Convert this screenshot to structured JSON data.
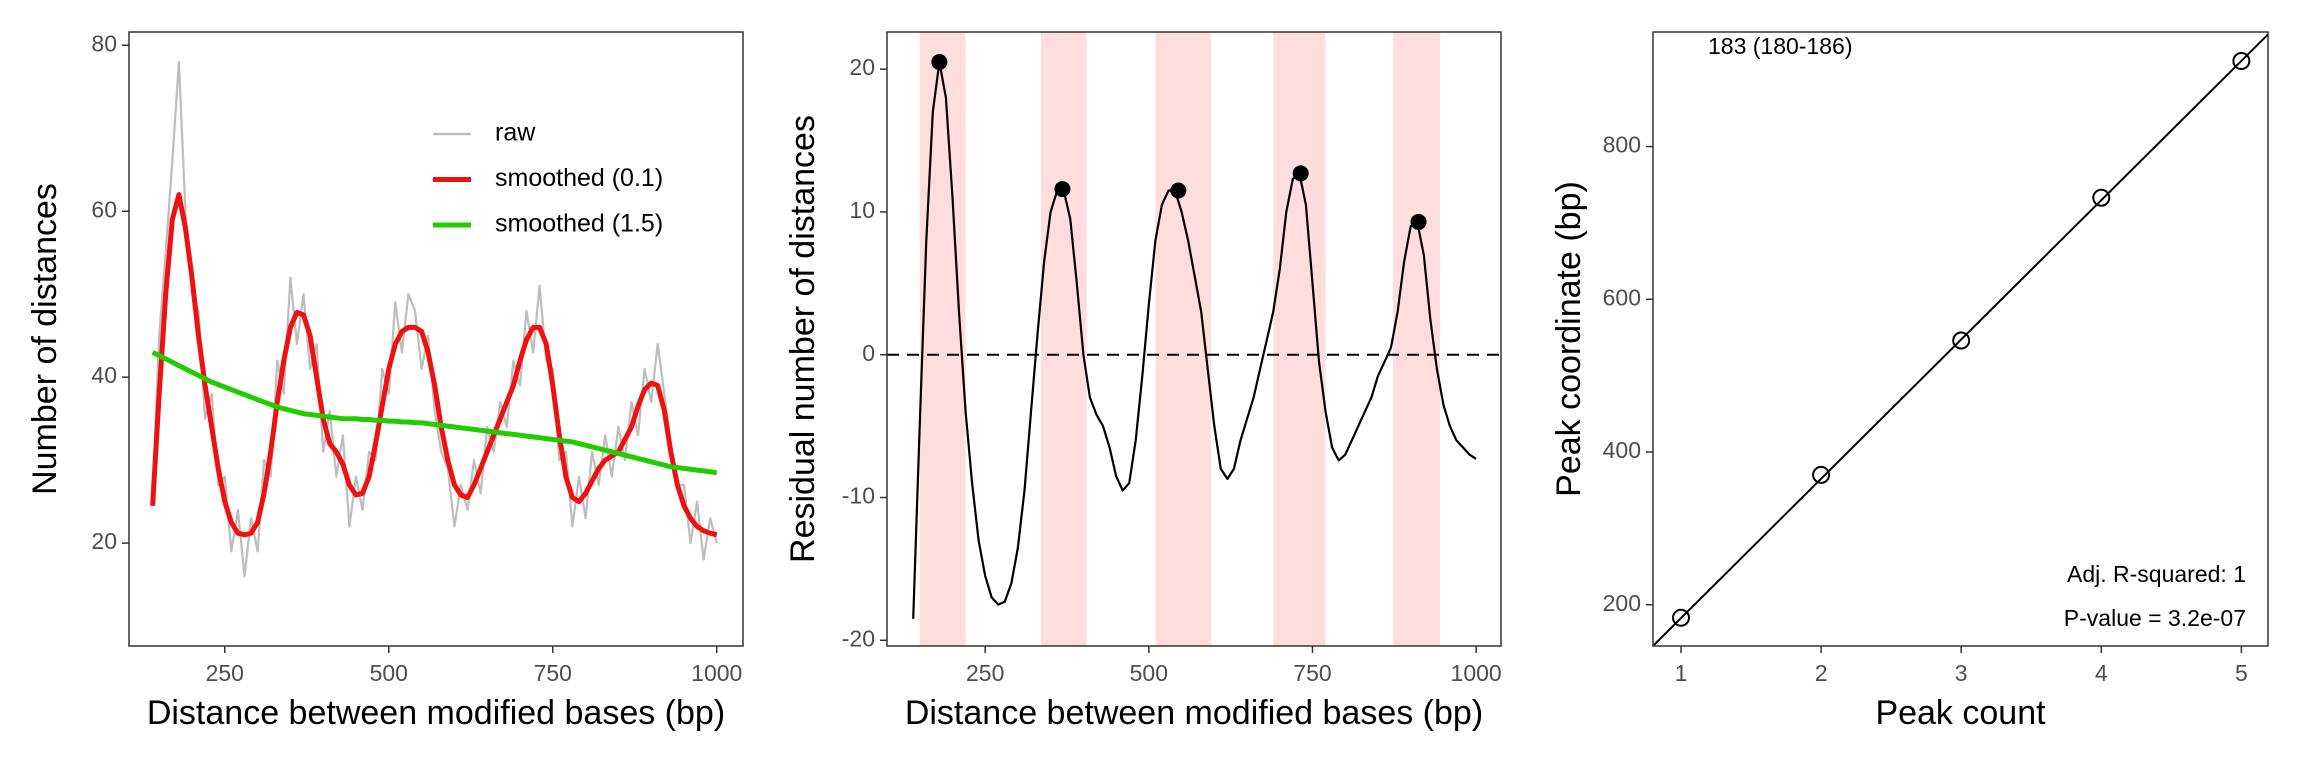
{
  "chart_data": [
    {
      "type": "line",
      "xlabel": "Distance between modified bases (bp)",
      "ylabel": "Number of distances",
      "xlim": [
        104,
        1040
      ],
      "ylim": [
        7.6,
        81.6
      ],
      "xticks": [
        250,
        500,
        750,
        1000
      ],
      "yticks": [
        20,
        40,
        60,
        80
      ],
      "legend": true,
      "x": [
        140,
        150,
        160,
        170,
        180,
        190,
        200,
        210,
        220,
        230,
        240,
        250,
        260,
        270,
        280,
        290,
        300,
        310,
        320,
        330,
        340,
        350,
        360,
        370,
        380,
        390,
        400,
        410,
        420,
        430,
        440,
        450,
        460,
        470,
        480,
        490,
        500,
        510,
        520,
        530,
        540,
        550,
        560,
        570,
        580,
        590,
        600,
        610,
        620,
        630,
        640,
        650,
        660,
        670,
        680,
        690,
        700,
        710,
        720,
        730,
        740,
        750,
        760,
        770,
        780,
        790,
        800,
        810,
        820,
        830,
        840,
        850,
        860,
        870,
        880,
        890,
        900,
        910,
        920,
        930,
        940,
        950,
        960,
        970,
        980,
        990,
        1000
      ],
      "series": [
        {
          "name": "raw",
          "color": "#bdbdbd",
          "values": [
            26,
            45,
            55,
            66,
            78,
            60,
            50,
            48,
            35,
            38,
            27,
            28,
            19,
            24,
            16,
            23,
            19,
            30,
            28,
            42,
            38,
            52,
            44,
            50,
            41,
            44,
            31,
            36,
            28,
            33,
            22,
            28,
            24,
            31,
            30,
            41,
            38,
            49,
            43,
            50,
            48,
            41,
            45,
            36,
            31,
            29,
            22,
            27,
            24,
            30,
            26,
            34,
            31,
            37,
            34,
            42,
            39,
            48,
            43,
            51,
            42,
            41,
            30,
            31,
            22,
            28,
            23,
            31,
            27,
            33,
            28,
            34,
            30,
            37,
            33,
            41,
            37,
            44,
            38,
            32,
            27,
            27,
            20,
            25,
            18,
            23,
            20
          ]
        },
        {
          "name": "smoothed (0.1)",
          "color": "#ee1111",
          "values": [
            24.5,
            38,
            50,
            59,
            62,
            58,
            52,
            45,
            39,
            34,
            29,
            25,
            22.5,
            21.2,
            21,
            21.2,
            22.5,
            26,
            31,
            37,
            42,
            46,
            47.8,
            47.5,
            45,
            40,
            35,
            32,
            31,
            29.5,
            27,
            25.8,
            26,
            28,
            32,
            36.5,
            41,
            44,
            45.5,
            46,
            46,
            45.5,
            43,
            39,
            34,
            30,
            27,
            25.8,
            25.5,
            27,
            29,
            31,
            33,
            35,
            37,
            39,
            42,
            44.5,
            46,
            46,
            44,
            39,
            33,
            28,
            25.5,
            25,
            26,
            27.5,
            29,
            30,
            30.5,
            31,
            32.5,
            34,
            36.5,
            38.5,
            39.3,
            39,
            36,
            31,
            27,
            24.5,
            23,
            22,
            21.5,
            21.2,
            21
          ]
        },
        {
          "name": "smoothed (1.5)",
          "color": "#22cc00",
          "values": [
            43,
            42.6,
            42.2,
            41.8,
            41.4,
            41,
            40.6,
            40.2,
            39.8,
            39.4,
            39.1,
            38.8,
            38.5,
            38.2,
            37.9,
            37.6,
            37.3,
            37,
            36.7,
            36.4,
            36.2,
            36,
            35.8,
            35.6,
            35.5,
            35.4,
            35.3,
            35.2,
            35.1,
            35,
            35,
            35,
            34.9,
            34.9,
            34.8,
            34.8,
            34.7,
            34.7,
            34.6,
            34.6,
            34.5,
            34.5,
            34.4,
            34.3,
            34.2,
            34.1,
            34,
            33.9,
            33.8,
            33.7,
            33.6,
            33.5,
            33.4,
            33.3,
            33.2,
            33.1,
            33,
            32.9,
            32.8,
            32.7,
            32.6,
            32.5,
            32.4,
            32.3,
            32.2,
            32,
            31.8,
            31.6,
            31.4,
            31.2,
            31,
            30.8,
            30.6,
            30.4,
            30.2,
            30,
            29.8,
            29.6,
            29.4,
            29.2,
            29.1,
            29,
            28.9,
            28.8,
            28.7,
            28.6,
            28.5
          ]
        }
      ]
    },
    {
      "type": "line",
      "xlabel": "Distance between modified bases (bp)",
      "ylabel": "Residual number of distances",
      "xlim": [
        100,
        1038
      ],
      "ylim": [
        -20.4,
        22.6
      ],
      "xticks": [
        250,
        500,
        750,
        1000
      ],
      "yticks": [
        -20,
        -10,
        0,
        10,
        20
      ],
      "hline": 0,
      "bands": [
        [
          150,
          220
        ],
        [
          335,
          405
        ],
        [
          510,
          595
        ],
        [
          690,
          770
        ],
        [
          873,
          945
        ]
      ],
      "band_color": "#ffdddd",
      "x": [
        140,
        150,
        160,
        170,
        180,
        190,
        200,
        210,
        220,
        230,
        240,
        250,
        260,
        270,
        280,
        290,
        300,
        310,
        320,
        330,
        340,
        350,
        360,
        370,
        380,
        390,
        400,
        410,
        420,
        430,
        440,
        450,
        460,
        470,
        480,
        490,
        500,
        510,
        520,
        530,
        540,
        550,
        560,
        570,
        580,
        590,
        600,
        610,
        620,
        630,
        640,
        650,
        660,
        670,
        680,
        690,
        700,
        710,
        720,
        730,
        740,
        750,
        760,
        770,
        780,
        790,
        800,
        810,
        820,
        830,
        840,
        850,
        860,
        870,
        880,
        890,
        900,
        910,
        920,
        930,
        940,
        950,
        960,
        970,
        980,
        990,
        1000
      ],
      "series": [
        {
          "color": "#000000",
          "values": [
            -18.5,
            -5,
            8,
            17,
            20.5,
            18,
            11,
            3,
            -4,
            -9,
            -13,
            -15.5,
            -17,
            -17.5,
            -17.3,
            -16,
            -13.5,
            -9.5,
            -4,
            1.5,
            6.5,
            10,
            11.5,
            11.5,
            9.5,
            5,
            0,
            -3,
            -4.2,
            -5,
            -6.5,
            -8.5,
            -9.5,
            -9,
            -6,
            -1.5,
            3.5,
            8,
            10.5,
            11.5,
            11.5,
            10,
            8,
            5.5,
            3,
            -1,
            -5,
            -8,
            -8.7,
            -8,
            -6,
            -4.5,
            -3,
            -1,
            1,
            3,
            6,
            10,
            12.3,
            12.7,
            10.5,
            5,
            -0.5,
            -4,
            -6.5,
            -7.4,
            -7,
            -6,
            -5,
            -4,
            -3,
            -1.5,
            -0.5,
            0.5,
            3,
            6.5,
            9,
            9.3,
            7,
            2.5,
            -1,
            -3.5,
            -5,
            -6,
            -6.5,
            -7,
            -7.3
          ]
        }
      ],
      "peaks": {
        "x": [
          180,
          368,
          545,
          732,
          912
        ],
        "values": [
          20.5,
          11.6,
          11.5,
          12.7,
          9.3
        ]
      }
    },
    {
      "type": "scatter",
      "xlabel": "Peak count",
      "ylabel": "Peak coordinate (bp)",
      "xlim": [
        0.8,
        5.19
      ],
      "ylim": [
        146,
        950
      ],
      "xticks": [
        1,
        2,
        3,
        4,
        5
      ],
      "yticks": [
        200,
        400,
        600,
        800
      ],
      "x": [
        1,
        2,
        3,
        4,
        5
      ],
      "values": [
        183,
        370,
        546,
        733,
        912
      ],
      "fit": {
        "slope": 182.4,
        "intercept": 0.2
      },
      "annotations": [
        "183 (180-186)",
        "Adj. R-squared: 1",
        "P-value = 3.2e-07"
      ]
    }
  ]
}
